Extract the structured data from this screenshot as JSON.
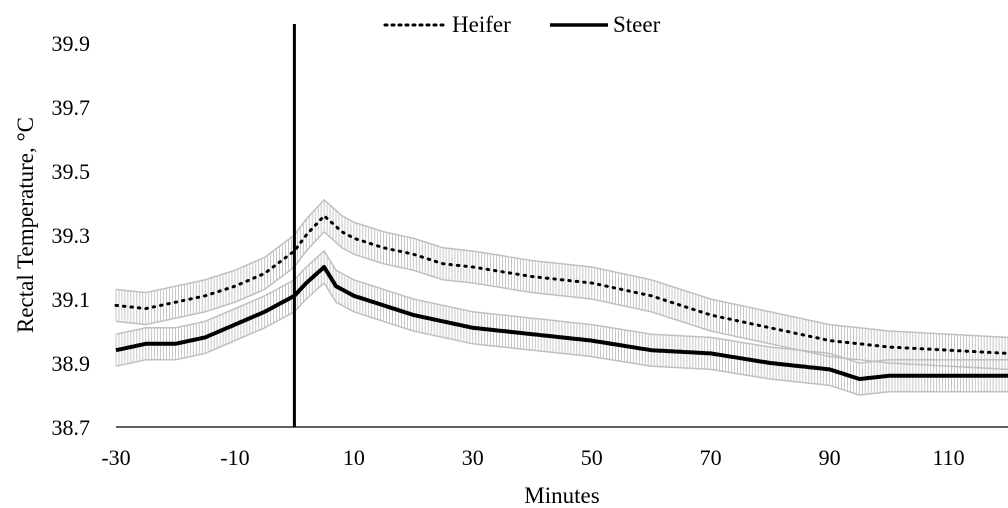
{
  "chart_data": {
    "type": "line",
    "title": "",
    "xlabel": "Minutes",
    "ylabel": "Rectal Temperature, °C",
    "xlim": [
      -30,
      120
    ],
    "ylim": [
      38.7,
      40.0
    ],
    "x_ticks": [
      "-30",
      "-10",
      "10",
      "30",
      "50",
      "70",
      "90",
      "110"
    ],
    "y_ticks": [
      "38.7",
      "38.9",
      "39.1",
      "39.3",
      "39.5",
      "39.7",
      "39.9"
    ],
    "reference_line_x": 0,
    "legend_position": "top-center",
    "grid": false,
    "colors": {
      "heifer": "#000000",
      "steer": "#000000",
      "error_bars": "#c0c0c0"
    },
    "error_bar_halfwidth": 0.05,
    "series": [
      {
        "name": "Heifer",
        "style": "dotted",
        "x": [
          -30,
          -25,
          -20,
          -15,
          -10,
          -5,
          0,
          2,
          5,
          8,
          10,
          15,
          20,
          25,
          30,
          40,
          50,
          60,
          70,
          80,
          90,
          100,
          110,
          120
        ],
        "values": [
          39.08,
          39.07,
          39.09,
          39.11,
          39.14,
          39.18,
          39.25,
          39.3,
          39.36,
          39.31,
          39.29,
          39.26,
          39.24,
          39.21,
          39.2,
          39.17,
          39.15,
          39.11,
          39.05,
          39.01,
          38.97,
          38.95,
          38.94,
          38.93
        ]
      },
      {
        "name": "Steer",
        "style": "solid",
        "x": [
          -30,
          -25,
          -20,
          -15,
          -10,
          -5,
          0,
          2,
          5,
          7,
          10,
          15,
          20,
          25,
          30,
          40,
          50,
          60,
          70,
          80,
          90,
          95,
          100,
          110,
          120
        ],
        "values": [
          38.94,
          38.96,
          38.96,
          38.98,
          39.02,
          39.06,
          39.11,
          39.15,
          39.2,
          39.14,
          39.11,
          39.08,
          39.05,
          39.03,
          39.01,
          38.99,
          38.97,
          38.94,
          38.93,
          38.9,
          38.88,
          38.85,
          38.86,
          38.86,
          38.86
        ]
      }
    ]
  }
}
